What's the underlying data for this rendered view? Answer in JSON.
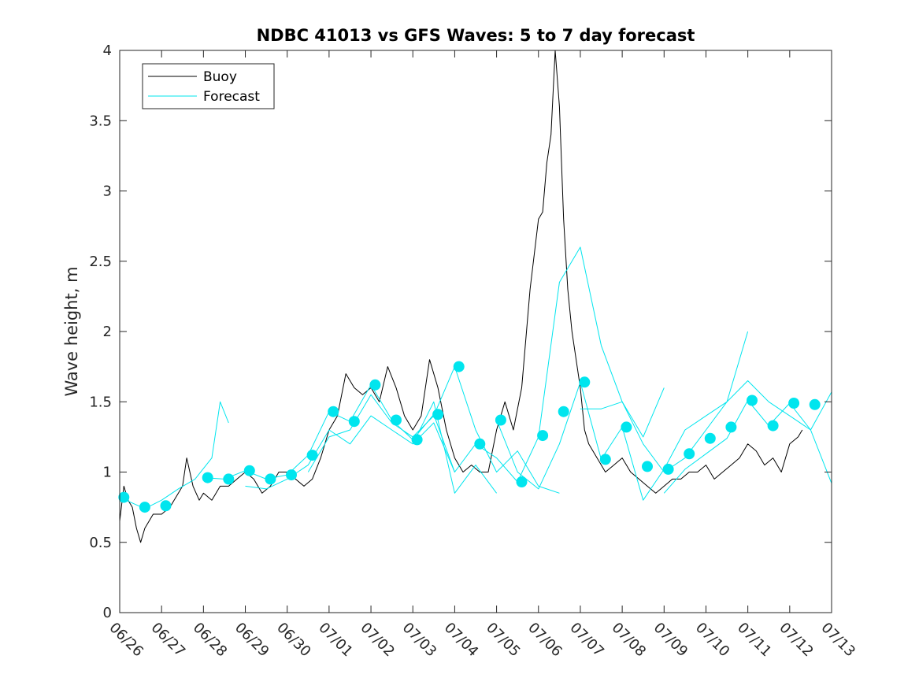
{
  "chart_data": {
    "type": "line",
    "title": "NDBC 41013 vs GFS Waves: 5 to 7 day forecast",
    "xlabel": "",
    "ylabel": "Wave height, m",
    "xlim": [
      0,
      17
    ],
    "ylim": [
      0,
      4
    ],
    "x_ticks": [
      0,
      1,
      2,
      3,
      4,
      5,
      6,
      7,
      8,
      9,
      10,
      11,
      12,
      13,
      14,
      15,
      16,
      17
    ],
    "x_tick_labels": [
      "06/26",
      "06/27",
      "06/28",
      "06/29",
      "06/30",
      "07/01",
      "07/02",
      "07/03",
      "07/04",
      "07/05",
      "07/06",
      "07/07",
      "07/08",
      "07/09",
      "07/10",
      "07/11",
      "07/12",
      "07/13"
    ],
    "y_ticks": [
      0,
      0.5,
      1,
      1.5,
      2,
      2.5,
      3,
      3.5,
      4
    ],
    "y_tick_labels": [
      "0",
      "0.5",
      "1",
      "1.5",
      "2",
      "2.5",
      "3",
      "3.5",
      "4"
    ],
    "grid": false,
    "legend": {
      "placement": "top-left",
      "entries": [
        "Buoy",
        "Forecast"
      ]
    },
    "colors": {
      "buoy": "#000000",
      "forecast": "#00e5ee"
    },
    "series": [
      {
        "name": "Buoy",
        "color": "#000000",
        "x": [
          0,
          0.1,
          0.2,
          0.3,
          0.4,
          0.5,
          0.6,
          0.8,
          1.0,
          1.2,
          1.3,
          1.5,
          1.6,
          1.75,
          1.9,
          2.0,
          2.2,
          2.4,
          2.6,
          2.8,
          3.0,
          3.2,
          3.4,
          3.6,
          3.8,
          4.0,
          4.2,
          4.4,
          4.6,
          4.8,
          5.0,
          5.2,
          5.4,
          5.6,
          5.8,
          6.0,
          6.2,
          6.4,
          6.6,
          6.8,
          7.0,
          7.2,
          7.4,
          7.6,
          7.8,
          8.0,
          8.2,
          8.4,
          8.6,
          8.8,
          9.0,
          9.2,
          9.4,
          9.6,
          9.8,
          10.0,
          10.1,
          10.2,
          10.3,
          10.4,
          10.5,
          10.6,
          10.7,
          10.8,
          10.9,
          11.0,
          11.1,
          11.2,
          11.4,
          11.6,
          11.8,
          12.0,
          12.2,
          12.4,
          12.6,
          12.8,
          13.0,
          13.2,
          13.4,
          13.6,
          13.8,
          14.0,
          14.2,
          14.4,
          14.6,
          14.8,
          15.0,
          15.2,
          15.4,
          15.6,
          15.8,
          16.0,
          16.2,
          16.3
        ],
        "values": [
          0.65,
          0.9,
          0.8,
          0.75,
          0.6,
          0.5,
          0.6,
          0.7,
          0.7,
          0.75,
          0.8,
          0.9,
          1.1,
          0.9,
          0.8,
          0.85,
          0.8,
          0.9,
          0.9,
          0.95,
          1.0,
          0.95,
          0.85,
          0.9,
          1.0,
          1.0,
          0.95,
          0.9,
          0.95,
          1.1,
          1.3,
          1.4,
          1.7,
          1.6,
          1.55,
          1.6,
          1.5,
          1.75,
          1.6,
          1.4,
          1.3,
          1.4,
          1.8,
          1.6,
          1.3,
          1.1,
          1.0,
          1.05,
          1.0,
          1.0,
          1.3,
          1.5,
          1.3,
          1.6,
          2.3,
          2.8,
          2.85,
          3.2,
          3.4,
          4.0,
          3.6,
          2.8,
          2.3,
          2.0,
          1.8,
          1.6,
          1.3,
          1.2,
          1.1,
          1.0,
          1.05,
          1.1,
          1.0,
          0.95,
          0.9,
          0.85,
          0.9,
          0.95,
          0.95,
          1.0,
          1.0,
          1.05,
          0.95,
          1.0,
          1.05,
          1.1,
          1.2,
          1.15,
          1.05,
          1.1,
          1.0,
          1.2,
          1.25,
          1.3
        ]
      },
      {
        "name": "Forecast",
        "color": "#00e5ee",
        "x": [
          0,
          0.3,
          0.6,
          1.0,
          1.4,
          1.8,
          2.2,
          2.4,
          2.6
        ],
        "values": [
          0.82,
          0.78,
          0.74,
          0.8,
          0.88,
          0.95,
          1.1,
          1.5,
          1.35
        ]
      },
      {
        "x": [
          2.0,
          2.5,
          3.0,
          3.5,
          4.0,
          4.5,
          5.0,
          5.5,
          6.0,
          6.5,
          7.0,
          7.5,
          8.0
        ],
        "values": [
          0.96,
          0.95,
          1.01,
          0.95,
          0.98,
          1.12,
          1.43,
          1.36,
          1.62,
          1.37,
          1.23,
          1.41,
          1.0
        ]
      },
      {
        "x": [
          3.0,
          3.5,
          4.0,
          4.5,
          5.0,
          5.5,
          6.0,
          6.5,
          7.0,
          7.5,
          8.0,
          8.5,
          9.0
        ],
        "values": [
          0.9,
          0.88,
          0.95,
          1.05,
          1.3,
          1.2,
          1.4,
          1.3,
          1.2,
          1.5,
          0.85,
          1.05,
          0.85
        ]
      },
      {
        "x": [
          4.5,
          5.0,
          5.5,
          6.0,
          6.5,
          7.0,
          7.5,
          8.0,
          8.5,
          9.0,
          9.5,
          10.0,
          10.5
        ],
        "values": [
          1.0,
          1.25,
          1.3,
          1.55,
          1.35,
          1.25,
          1.4,
          1.75,
          1.3,
          1.0,
          1.15,
          0.9,
          0.85
        ]
      },
      {
        "x": [
          7.0,
          7.5,
          8.0,
          8.5,
          9.0,
          9.5,
          10.0,
          10.5,
          11.0,
          11.5,
          12.0,
          12.5,
          13.0
        ],
        "values": [
          1.2,
          1.35,
          1.0,
          1.2,
          1.1,
          0.93,
          1.25,
          2.35,
          2.6,
          1.9,
          1.5,
          1.25,
          1.6
        ]
      },
      {
        "x": [
          9.0,
          9.5,
          10.0,
          10.5,
          11.0,
          11.5,
          12.0,
          12.5,
          13.0,
          13.5,
          14.0,
          14.5,
          15.0
        ],
        "values": [
          1.37,
          1.0,
          0.88,
          1.2,
          1.64,
          1.09,
          1.32,
          0.8,
          1.02,
          1.3,
          1.4,
          1.5,
          2.0
        ]
      },
      {
        "x": [
          11.0,
          11.5,
          12.0,
          12.5,
          13.0,
          13.5,
          14.0,
          14.5,
          15.0,
          15.5,
          16.0,
          16.5,
          17.0
        ],
        "values": [
          1.45,
          1.45,
          1.5,
          1.2,
          1.0,
          1.1,
          1.3,
          1.5,
          1.65,
          1.5,
          1.4,
          1.3,
          1.57
        ]
      },
      {
        "x": [
          13.0,
          13.5,
          14.0,
          14.5,
          15.0,
          15.5,
          16.0,
          16.5,
          17.0
        ],
        "values": [
          0.85,
          1.02,
          1.13,
          1.24,
          1.51,
          1.33,
          1.49,
          1.3,
          0.92
        ]
      },
      {
        "name": "Forecast markers",
        "color": "#00e5ee",
        "x": [
          0.1,
          0.6,
          1.1,
          2.1,
          2.6,
          3.1,
          3.6,
          4.1,
          4.6,
          5.1,
          5.6,
          6.1,
          6.6,
          7.1,
          7.6,
          8.1,
          8.6,
          9.1,
          9.6,
          10.1,
          10.6,
          11.1,
          11.6,
          12.1,
          12.6,
          13.1,
          13.6,
          14.1,
          14.6,
          15.1,
          15.6,
          16.1,
          16.6
        ],
        "values": [
          0.82,
          0.75,
          0.76,
          0.96,
          0.95,
          1.01,
          0.95,
          0.98,
          1.12,
          1.43,
          1.36,
          1.62,
          1.37,
          1.23,
          1.41,
          1.75,
          1.2,
          1.37,
          0.93,
          1.26,
          1.43,
          1.64,
          1.09,
          1.32,
          1.04,
          1.02,
          1.13,
          1.24,
          1.32,
          1.51,
          1.33,
          1.49,
          1.48
        ]
      }
    ]
  }
}
